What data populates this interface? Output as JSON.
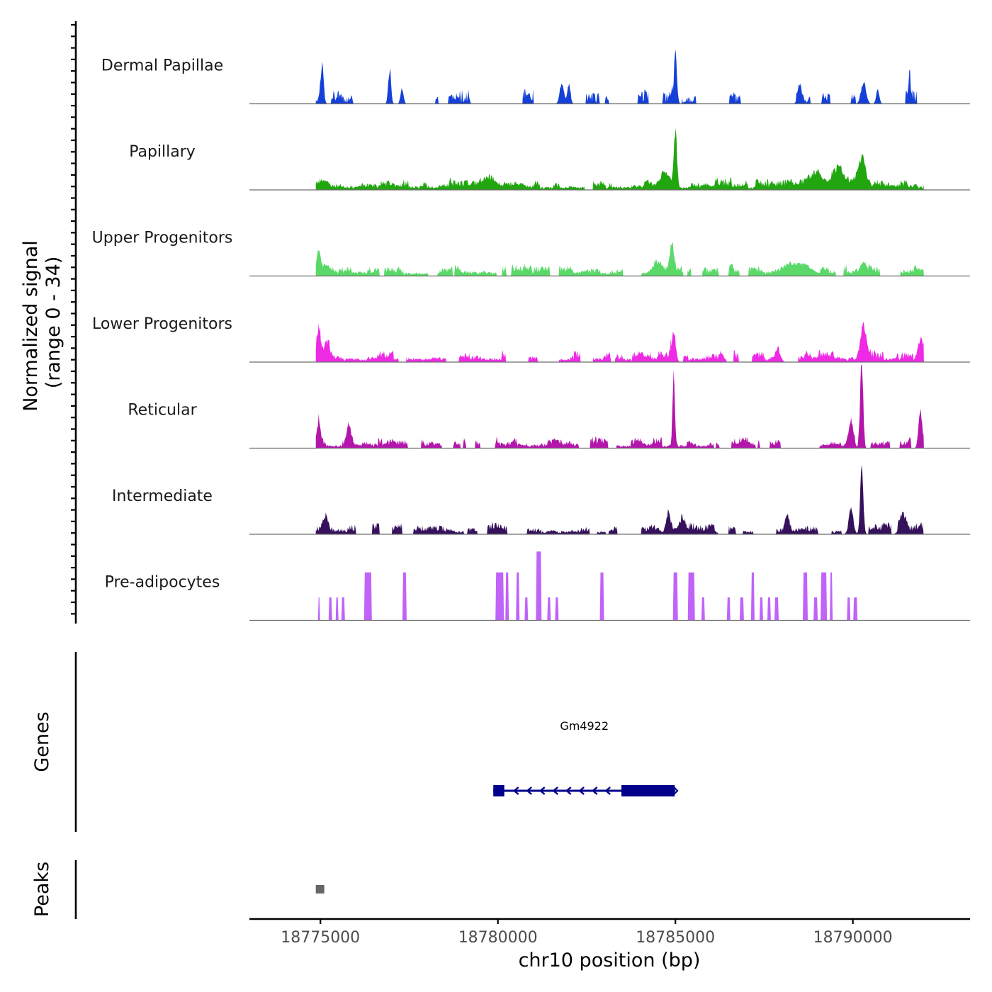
{
  "chart_data": {
    "type": "area",
    "title": "",
    "ylabel_line1": "Normalized signal",
    "ylabel_line2": "(range 0 - 34)",
    "xlabel": "chr10 position (bp)",
    "x_range": [
      18773000,
      18793300
    ],
    "data_x_range": [
      18774870,
      18792000
    ],
    "y_range": [
      0,
      34
    ],
    "x_ticks": [
      18775000,
      18780000,
      18785000,
      18790000
    ],
    "x_tick_labels": [
      "18775000",
      "18780000",
      "18785000",
      "18790000"
    ],
    "series": [
      {
        "name": "Dermal Papillae",
        "color": "#1541d9",
        "style": "sparse",
        "seed": 11,
        "density": 0.34,
        "peaks": [
          [
            18775050,
            18,
            60
          ],
          [
            18776950,
            17,
            55
          ],
          [
            18777300,
            7,
            60
          ],
          [
            18781800,
            10,
            80
          ],
          [
            18782000,
            10,
            60
          ],
          [
            18785000,
            24,
            60
          ],
          [
            18788500,
            8,
            80
          ],
          [
            18790300,
            10,
            100
          ],
          [
            18790700,
            7,
            60
          ],
          [
            18791600,
            10,
            50
          ]
        ]
      },
      {
        "name": "Papillary",
        "color": "#21a610",
        "style": "dense",
        "seed": 23,
        "density": 0.93,
        "peaks": [
          [
            18775100,
            3,
            150
          ],
          [
            18779800,
            3,
            300
          ],
          [
            18785000,
            25,
            60
          ],
          [
            18784700,
            6,
            200
          ],
          [
            18789000,
            5,
            300
          ],
          [
            18789600,
            7,
            250
          ],
          [
            18790250,
            14,
            150
          ]
        ]
      },
      {
        "name": "Upper Progenitors",
        "color": "#5ad969",
        "style": "dense",
        "seed": 37,
        "density": 0.8,
        "peaks": [
          [
            18774950,
            12,
            80
          ],
          [
            18775200,
            5,
            150
          ],
          [
            18784900,
            12,
            80
          ],
          [
            18784500,
            5,
            200
          ],
          [
            18788500,
            5,
            500
          ],
          [
            18790300,
            7,
            150
          ]
        ]
      },
      {
        "name": "Lower Progenitors",
        "color": "#ee2ae5",
        "style": "dense",
        "seed": 41,
        "density": 0.85,
        "peaks": [
          [
            18774950,
            14,
            70
          ],
          [
            18775200,
            6,
            120
          ],
          [
            18784950,
            15,
            80
          ],
          [
            18787900,
            5,
            100
          ],
          [
            18790300,
            16,
            120
          ],
          [
            18791900,
            10,
            100
          ]
        ]
      },
      {
        "name": "Reticular",
        "color": "#b316ab",
        "style": "dense",
        "seed": 53,
        "density": 0.72,
        "peaks": [
          [
            18774950,
            11,
            80
          ],
          [
            18775800,
            9,
            80
          ],
          [
            18784950,
            34,
            45
          ],
          [
            18790250,
            45,
            55
          ],
          [
            18789950,
            12,
            100
          ],
          [
            18791900,
            19,
            70
          ]
        ]
      },
      {
        "name": "Intermediate",
        "color": "#36125c",
        "style": "dense",
        "seed": 67,
        "density": 0.68,
        "peaks": [
          [
            18775150,
            7,
            100
          ],
          [
            18784800,
            10,
            80
          ],
          [
            18785200,
            6,
            100
          ],
          [
            18788150,
            9,
            80
          ],
          [
            18790250,
            35,
            60
          ],
          [
            18789950,
            12,
            90
          ],
          [
            18791400,
            8,
            120
          ]
        ]
      },
      {
        "name": "Pre-adipocytes",
        "color": "#c063f8",
        "style": "bars",
        "bars": [
          [
            18774960,
            11,
            30
          ],
          [
            18775280,
            11,
            60
          ],
          [
            18775470,
            11,
            60
          ],
          [
            18775640,
            11,
            80
          ],
          [
            18776340,
            23,
            180
          ],
          [
            18777370,
            23,
            110
          ],
          [
            18780050,
            23,
            200
          ],
          [
            18780260,
            23,
            90
          ],
          [
            18780560,
            23,
            90
          ],
          [
            18780800,
            11,
            80
          ],
          [
            18781150,
            33,
            140
          ],
          [
            18781440,
            11,
            80
          ],
          [
            18781660,
            11,
            80
          ],
          [
            18782930,
            23,
            110
          ],
          [
            18785000,
            23,
            110
          ],
          [
            18785450,
            23,
            160
          ],
          [
            18785780,
            11,
            90
          ],
          [
            18786500,
            11,
            80
          ],
          [
            18786870,
            11,
            80
          ],
          [
            18787180,
            23,
            90
          ],
          [
            18787420,
            11,
            80
          ],
          [
            18787640,
            11,
            90
          ],
          [
            18787850,
            11,
            90
          ],
          [
            18788660,
            23,
            130
          ],
          [
            18788950,
            11,
            80
          ],
          [
            18789180,
            23,
            170
          ],
          [
            18789390,
            23,
            70
          ],
          [
            18789880,
            11,
            80
          ],
          [
            18790070,
            11,
            90
          ]
        ]
      }
    ],
    "genes": [
      {
        "name": "Gm4922",
        "strand": "-",
        "start": 18779870,
        "end": 18785000,
        "exons": [
          [
            18779870,
            18780180
          ],
          [
            18783480,
            18784980
          ]
        ]
      }
    ],
    "genes_panel_title": "Genes",
    "peaks_panel_title": "Peaks",
    "peak_color": "#666666",
    "peak_regions": [
      [
        18774870,
        18775100
      ]
    ]
  }
}
